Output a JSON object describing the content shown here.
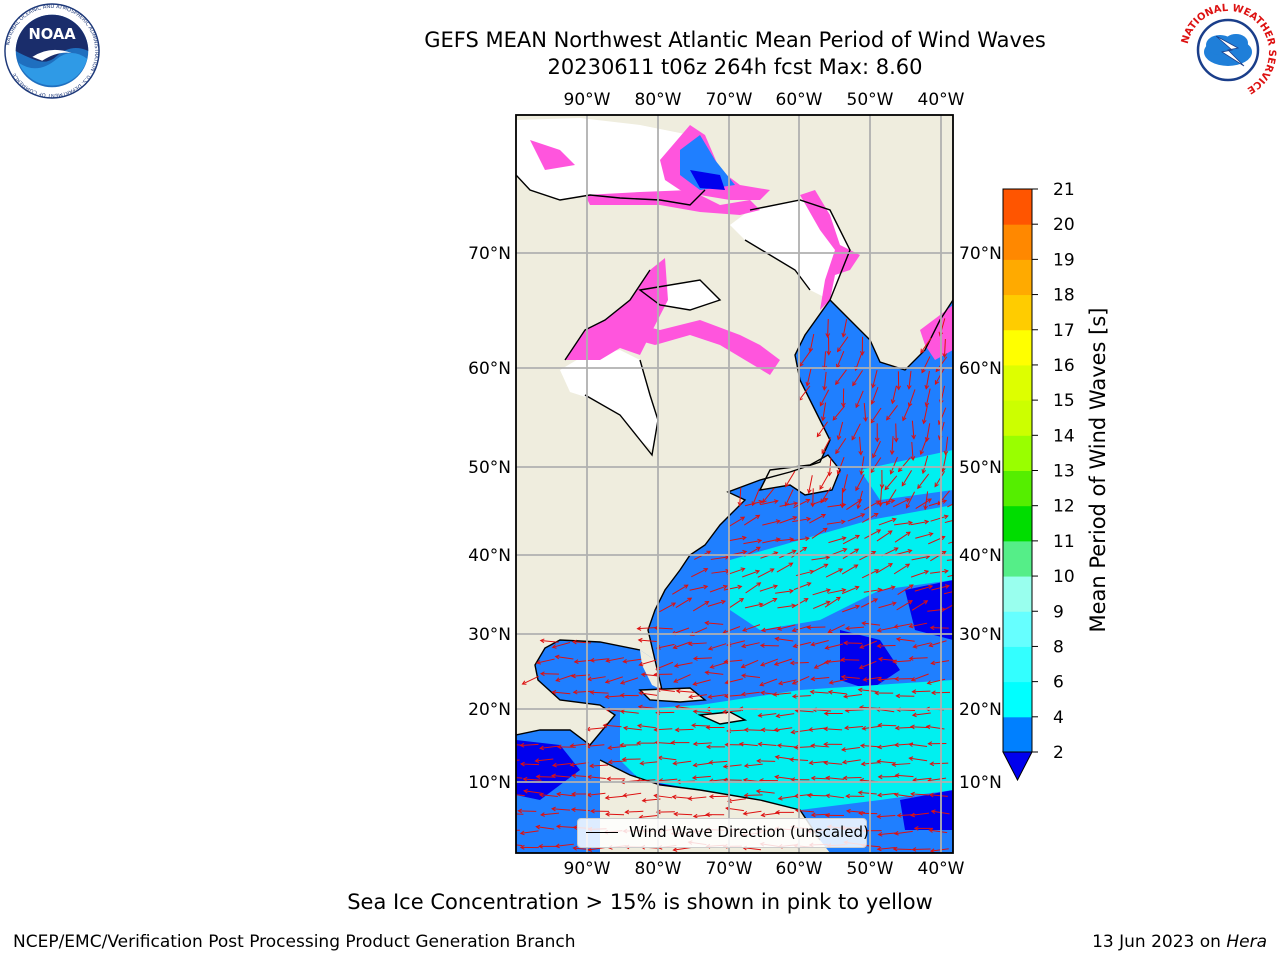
{
  "header": {
    "title": "GEFS MEAN Northwest Atlantic Mean Period of Wind Waves",
    "subtitle": "20230611 t06z 264h fcst   Max: 8.60"
  },
  "logos": {
    "left": {
      "name": "noaa-logo",
      "text": "NOAA",
      "ring": "NATIONAL OCEANIC AND ATMOSPHERIC ADMINISTRATION · U.S. DEPARTMENT OF COMMERCE"
    },
    "right": {
      "name": "nws-logo",
      "ring": "NATIONAL WEATHER SERVICE"
    }
  },
  "map": {
    "lon_labels": [
      "90°W",
      "80°W",
      "70°W",
      "60°W",
      "50°W",
      "40°W"
    ],
    "lat_labels": [
      "70°N",
      "60°N",
      "50°N",
      "40°N",
      "30°N",
      "20°N",
      "10°N"
    ],
    "legend": "Wind Wave Direction (unscaled)",
    "colors": {
      "land": "#efedde",
      "ice_free": "#ffffff",
      "ice": "#ff55dd",
      "ocean_low": "#1f7fff",
      "ocean_mid": "#00f0f0",
      "deep": "#0000ee",
      "arrows": "#dd1111"
    }
  },
  "colorbar": {
    "title": "Mean Period of Wind Waves [s]",
    "ticks": [
      "2",
      "4",
      "6",
      "8",
      "9",
      "10",
      "11",
      "12",
      "13",
      "14",
      "15",
      "16",
      "17",
      "18",
      "19",
      "20",
      "21"
    ],
    "colors": [
      "#0080ff",
      "#00ffff",
      "#33ffff",
      "#66ffff",
      "#99ffee",
      "#55ee88",
      "#00dd00",
      "#55ee00",
      "#99ff00",
      "#ccff00",
      "#ddff00",
      "#ffff00",
      "#ffcc00",
      "#ffaa00",
      "#ff8800",
      "#ff5500",
      "#ff2200",
      "#ff0000"
    ],
    "extend_color": "#0000ee"
  },
  "footer": {
    "note": "Sea Ice Concentration > 15% is shown in pink to yellow",
    "credit": "NCEP/EMC/Verification Post Processing Product Generation Branch",
    "date_prefix": "13 Jun 2023 on ",
    "date_host": "Hera"
  }
}
